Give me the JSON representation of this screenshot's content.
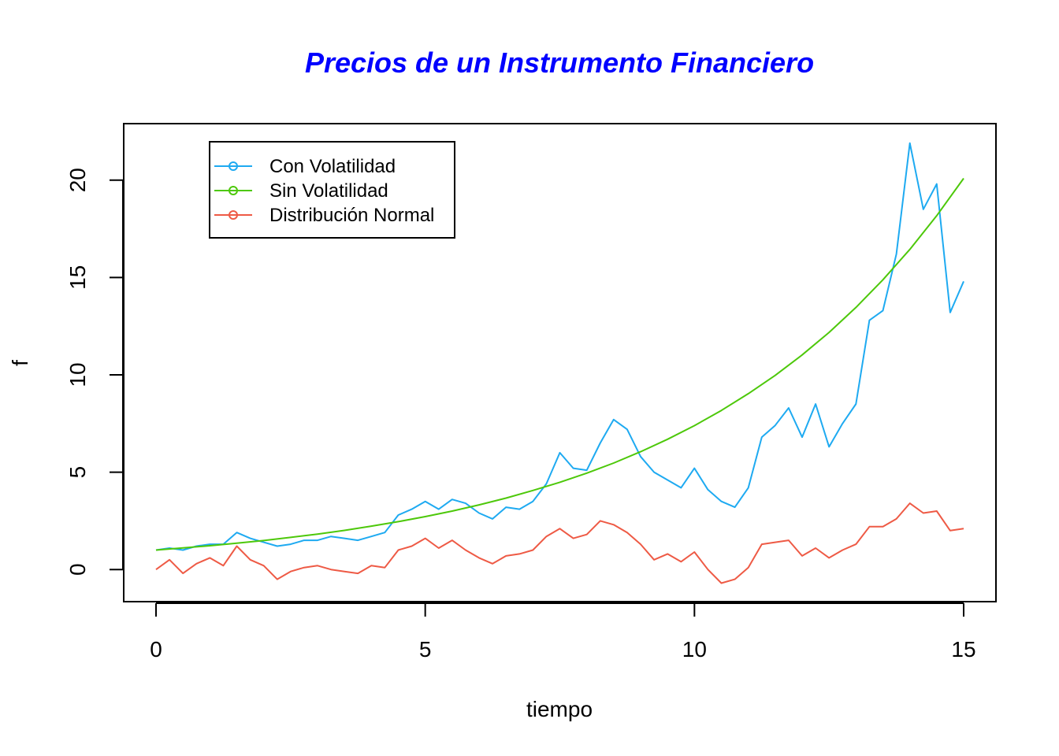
{
  "chart_data": {
    "type": "line",
    "title": "Precios de un Instrumento Financiero",
    "title_color": "#0000FF",
    "xlabel": "tiempo",
    "ylabel": "f",
    "xlim": [
      -0.6,
      15.6
    ],
    "ylim": [
      -1.65,
      22.9
    ],
    "xticks": [
      0,
      5,
      10,
      15
    ],
    "yticks": [
      0,
      5,
      10,
      15,
      20
    ],
    "legend": {
      "position": "top-left",
      "entries": [
        "Con Volatilidad",
        "Sin Volatilidad",
        "Distribución Normal"
      ]
    },
    "series": [
      {
        "name": "Con Volatilidad",
        "color": "#1EAAF1",
        "x": [
          0,
          0.25,
          0.5,
          0.75,
          1.0,
          1.25,
          1.5,
          1.75,
          2.0,
          2.25,
          2.5,
          2.75,
          3.0,
          3.25,
          3.5,
          3.75,
          4.0,
          4.25,
          4.5,
          4.75,
          5.0,
          5.25,
          5.5,
          5.75,
          6.0,
          6.25,
          6.5,
          6.75,
          7.0,
          7.25,
          7.5,
          7.75,
          8.0,
          8.25,
          8.5,
          8.75,
          9.0,
          9.25,
          9.5,
          9.75,
          10.0,
          10.25,
          10.5,
          10.75,
          11.0,
          11.25,
          11.5,
          11.75,
          12.0,
          12.25,
          12.5,
          12.75,
          13.0,
          13.25,
          13.5,
          13.75,
          14.0,
          14.25,
          14.5,
          14.75,
          15.0
        ],
        "y": [
          1.0,
          1.1,
          1.0,
          1.2,
          1.3,
          1.3,
          1.9,
          1.6,
          1.4,
          1.2,
          1.3,
          1.5,
          1.5,
          1.7,
          1.6,
          1.5,
          1.7,
          1.9,
          2.8,
          3.1,
          3.5,
          3.1,
          3.6,
          3.4,
          2.9,
          2.6,
          3.2,
          3.1,
          3.5,
          4.4,
          6.0,
          5.2,
          5.1,
          6.5,
          7.7,
          7.2,
          5.8,
          5.0,
          4.6,
          4.2,
          5.2,
          4.1,
          3.5,
          3.2,
          4.2,
          6.8,
          7.4,
          8.3,
          6.8,
          8.5,
          6.3,
          7.5,
          8.5,
          12.8,
          13.3,
          16.2,
          21.9,
          18.5,
          19.8,
          13.2,
          14.8
        ]
      },
      {
        "name": "Sin Volatilidad",
        "color": "#4DC80A",
        "x": [
          0,
          0.5,
          1.0,
          1.5,
          2.0,
          2.5,
          3.0,
          3.5,
          4.0,
          4.5,
          5.0,
          5.5,
          6.0,
          6.5,
          7.0,
          7.5,
          8.0,
          8.5,
          9.0,
          9.5,
          10.0,
          10.5,
          11.0,
          11.5,
          12.0,
          12.5,
          13.0,
          13.5,
          14.0,
          14.5,
          15.0
        ],
        "y": [
          1.0,
          1.11,
          1.22,
          1.35,
          1.49,
          1.65,
          1.82,
          2.01,
          2.23,
          2.46,
          2.72,
          3.0,
          3.32,
          3.67,
          4.06,
          4.48,
          4.95,
          5.47,
          6.05,
          6.69,
          7.39,
          8.17,
          9.03,
          9.97,
          11.02,
          12.18,
          13.46,
          14.88,
          16.44,
          18.17,
          20.09
        ]
      },
      {
        "name": "Distribución Normal",
        "color": "#EE5A45",
        "x": [
          0,
          0.25,
          0.5,
          0.75,
          1.0,
          1.25,
          1.5,
          1.75,
          2.0,
          2.25,
          2.5,
          2.75,
          3.0,
          3.25,
          3.5,
          3.75,
          4.0,
          4.25,
          4.5,
          4.75,
          5.0,
          5.25,
          5.5,
          5.75,
          6.0,
          6.25,
          6.5,
          6.75,
          7.0,
          7.25,
          7.5,
          7.75,
          8.0,
          8.25,
          8.5,
          8.75,
          9.0,
          9.25,
          9.5,
          9.75,
          10.0,
          10.25,
          10.5,
          10.75,
          11.0,
          11.25,
          11.5,
          11.75,
          12.0,
          12.25,
          12.5,
          12.75,
          13.0,
          13.25,
          13.5,
          13.75,
          14.0,
          14.25,
          14.5,
          14.75,
          15.0
        ],
        "y": [
          0.0,
          0.5,
          -0.2,
          0.3,
          0.6,
          0.2,
          1.2,
          0.5,
          0.2,
          -0.5,
          -0.1,
          0.1,
          0.2,
          0.0,
          -0.1,
          -0.2,
          0.2,
          0.1,
          1.0,
          1.2,
          1.6,
          1.1,
          1.5,
          1.0,
          0.6,
          0.3,
          0.7,
          0.8,
          1.0,
          1.7,
          2.1,
          1.6,
          1.8,
          2.5,
          2.3,
          1.9,
          1.3,
          0.5,
          0.8,
          0.4,
          0.9,
          0.0,
          -0.7,
          -0.5,
          0.1,
          1.3,
          1.4,
          1.5,
          0.7,
          1.1,
          0.6,
          1.0,
          1.3,
          2.2,
          2.2,
          2.6,
          3.4,
          2.9,
          3.0,
          2.0,
          2.1
        ]
      }
    ]
  }
}
